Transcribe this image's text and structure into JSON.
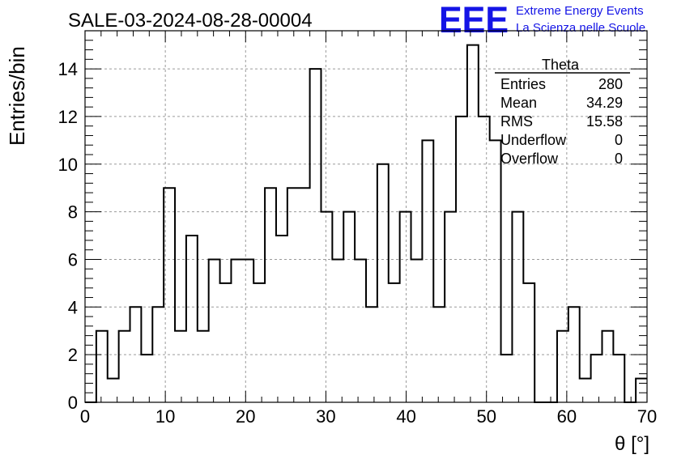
{
  "logo": {
    "text": "EEE",
    "line1": "Extreme Energy Events",
    "line2": "La Scienza nelle Scuole",
    "color": "#1414e6"
  },
  "chart_data": {
    "type": "bar",
    "style": "step-histogram",
    "title": "SALE-03-2024-08-28-00004",
    "xlabel": "θ [°]",
    "ylabel": "Entries/bin",
    "xlim": [
      0,
      70
    ],
    "ylim": [
      0,
      15.6
    ],
    "grid": true,
    "bin_edges_start": 0,
    "bin_width": 1.4,
    "values": [
      0,
      3,
      1,
      3,
      4,
      2,
      4,
      9,
      3,
      7,
      3,
      6,
      5,
      6,
      6,
      5,
      9,
      7,
      9,
      9,
      14,
      8,
      6,
      8,
      6,
      4,
      10,
      5,
      8,
      6,
      11,
      4,
      8,
      12,
      15,
      12,
      11,
      2,
      8,
      5,
      0,
      0,
      3,
      4,
      1,
      2,
      3,
      2,
      0,
      1
    ],
    "x_ticks": [
      "0",
      "10",
      "20",
      "30",
      "40",
      "50",
      "60",
      "70"
    ],
    "y_ticks": [
      "0",
      "2",
      "4",
      "6",
      "8",
      "10",
      "12",
      "14"
    ],
    "line_color": "#000000",
    "stats_box": {
      "title": "Theta",
      "placement": "top-right",
      "rows": [
        {
          "label": "Entries",
          "value": "280"
        },
        {
          "label": "Mean",
          "value": "34.29"
        },
        {
          "label": "RMS",
          "value": "15.58"
        },
        {
          "label": "Underflow",
          "value": "0"
        },
        {
          "label": "Overflow",
          "value": "0"
        }
      ]
    }
  }
}
